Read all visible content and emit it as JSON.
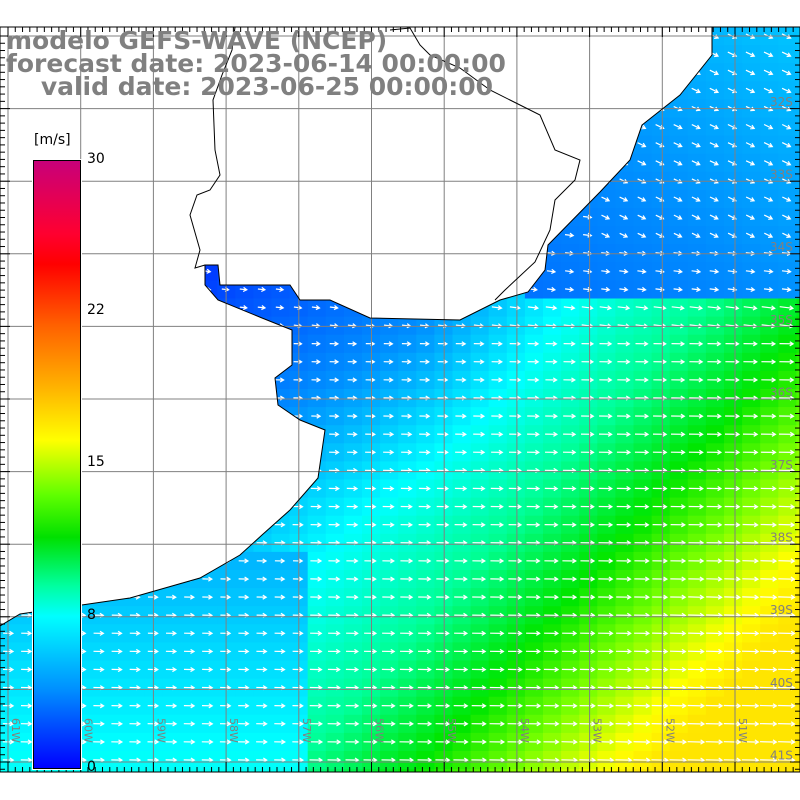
{
  "title": {
    "line1": "modelo GEFS-WAVE (NCEP)",
    "line2": "forecast date: 2023-06-14 00:00:00",
    "line3": "    valid date: 2023-06-25 00:00:00"
  },
  "colorbar": {
    "unit": "[m/s]",
    "ticks": [
      "30",
      "22",
      "15",
      "8",
      "0"
    ],
    "range": [
      0,
      30
    ],
    "colors": [
      "#0000ff",
      "#00ffff",
      "#00e000",
      "#ffff00",
      "#ff0000",
      "#c8007a"
    ]
  },
  "map": {
    "variable": "wind speed with direction arrows",
    "lon_labels": [
      "61W",
      "60W",
      "59W",
      "58W",
      "57W",
      "56W",
      "55W",
      "54W",
      "53W",
      "52W",
      "51W"
    ],
    "lat_labels": [
      "32S",
      "33S",
      "34S",
      "35S",
      "36S",
      "37S",
      "38S",
      "39S",
      "40S",
      "41S"
    ],
    "grid_color": "#808080",
    "coast_color": "#000000",
    "arrow_color": "#ffffff"
  }
}
